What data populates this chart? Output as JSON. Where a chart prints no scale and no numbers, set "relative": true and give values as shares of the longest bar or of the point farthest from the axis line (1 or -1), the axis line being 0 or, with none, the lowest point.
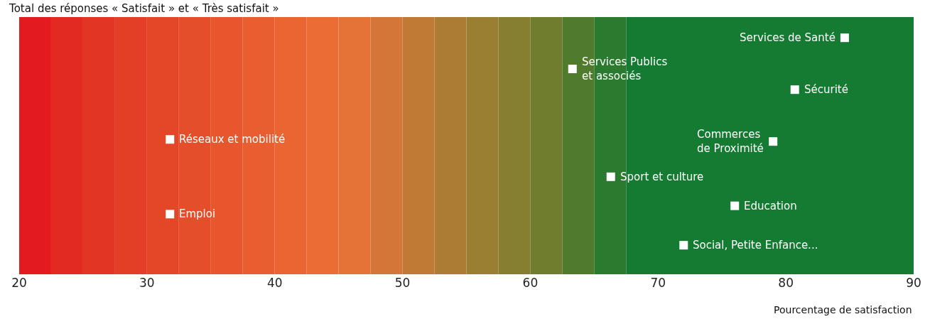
{
  "chart_data": {
    "type": "scatter",
    "title": "Total des réponses « Satisfait » et « Très satisfait »",
    "xlabel": "Pourcentage de satisfaction",
    "relative": true,
    "xlim": [
      20,
      90
    ],
    "xticks": [
      20,
      30,
      40,
      50,
      60,
      70,
      80,
      90
    ],
    "marker": "square",
    "color": "#ffffff",
    "x": [
      84.6,
      63.3,
      80.7,
      79.0,
      31.8,
      66.3,
      31.8,
      76.0,
      72.0
    ],
    "values": [
      1,
      0.85,
      0.75,
      0.5,
      0.51,
      0.33,
      0.15,
      0.19,
      0
    ],
    "annotations": [
      {
        "text": "Services de Santé",
        "x": 84.6,
        "y": 1
      },
      {
        "text": "Services Publics\net associés",
        "x": 63.3,
        "y": 0.85
      },
      {
        "text": "Sécurité",
        "x": 80.7,
        "y": 0.75
      },
      {
        "text": "Commerces\nde Proximité",
        "x": 79.0,
        "y": 0.5
      },
      {
        "text": "Réseaux et mobilité",
        "x": 31.8,
        "y": 0.51
      },
      {
        "text": "Sport et culture",
        "x": 66.3,
        "y": 0.33
      },
      {
        "text": "Emploi",
        "x": 31.8,
        "y": 0.15
      },
      {
        "text": "Education",
        "x": 76.0,
        "y": 0.19
      },
      {
        "text": "Social, Petite Enfance...",
        "x": 72.0,
        "y": 0
      }
    ],
    "bands": [
      {
        "axis": "x",
        "from": 20,
        "to": 22.5,
        "color": "#e31b1f"
      },
      {
        "axis": "x",
        "from": 22.5,
        "to": 25,
        "color": "#e22a22"
      },
      {
        "axis": "x",
        "from": 25,
        "to": 27.5,
        "color": "#e23524"
      },
      {
        "axis": "x",
        "from": 27.5,
        "to": 30,
        "color": "#e33e26"
      },
      {
        "axis": "x",
        "from": 30,
        "to": 32.5,
        "color": "#e44628"
      },
      {
        "axis": "x",
        "from": 32.5,
        "to": 35,
        "color": "#e54e2a"
      },
      {
        "axis": "x",
        "from": 35,
        "to": 37.5,
        "color": "#e7562d"
      },
      {
        "axis": "x",
        "from": 37.5,
        "to": 40,
        "color": "#e95e30"
      },
      {
        "axis": "x",
        "from": 40,
        "to": 42.5,
        "color": "#ea6532"
      },
      {
        "axis": "x",
        "from": 42.5,
        "to": 45,
        "color": "#eb6c35"
      },
      {
        "axis": "x",
        "from": 45,
        "to": 47.5,
        "color": "#e57237"
      },
      {
        "axis": "x",
        "from": 47.5,
        "to": 50,
        "color": "#d47637"
      },
      {
        "axis": "x",
        "from": 50,
        "to": 52.5,
        "color": "#c17936"
      },
      {
        "axis": "x",
        "from": 52.5,
        "to": 55,
        "color": "#ad7c34"
      },
      {
        "axis": "x",
        "from": 55,
        "to": 57.5,
        "color": "#9a7e32"
      },
      {
        "axis": "x",
        "from": 57.5,
        "to": 60,
        "color": "#877f30"
      },
      {
        "axis": "x",
        "from": 60,
        "to": 62.5,
        "color": "#707d2e"
      },
      {
        "axis": "x",
        "from": 62.5,
        "to": 65,
        "color": "#507b2d"
      },
      {
        "axis": "x",
        "from": 65,
        "to": 67.5,
        "color": "#2c7a2f"
      },
      {
        "axis": "x",
        "from": 67.5,
        "to": 90,
        "color": "#157a32"
      }
    ]
  }
}
